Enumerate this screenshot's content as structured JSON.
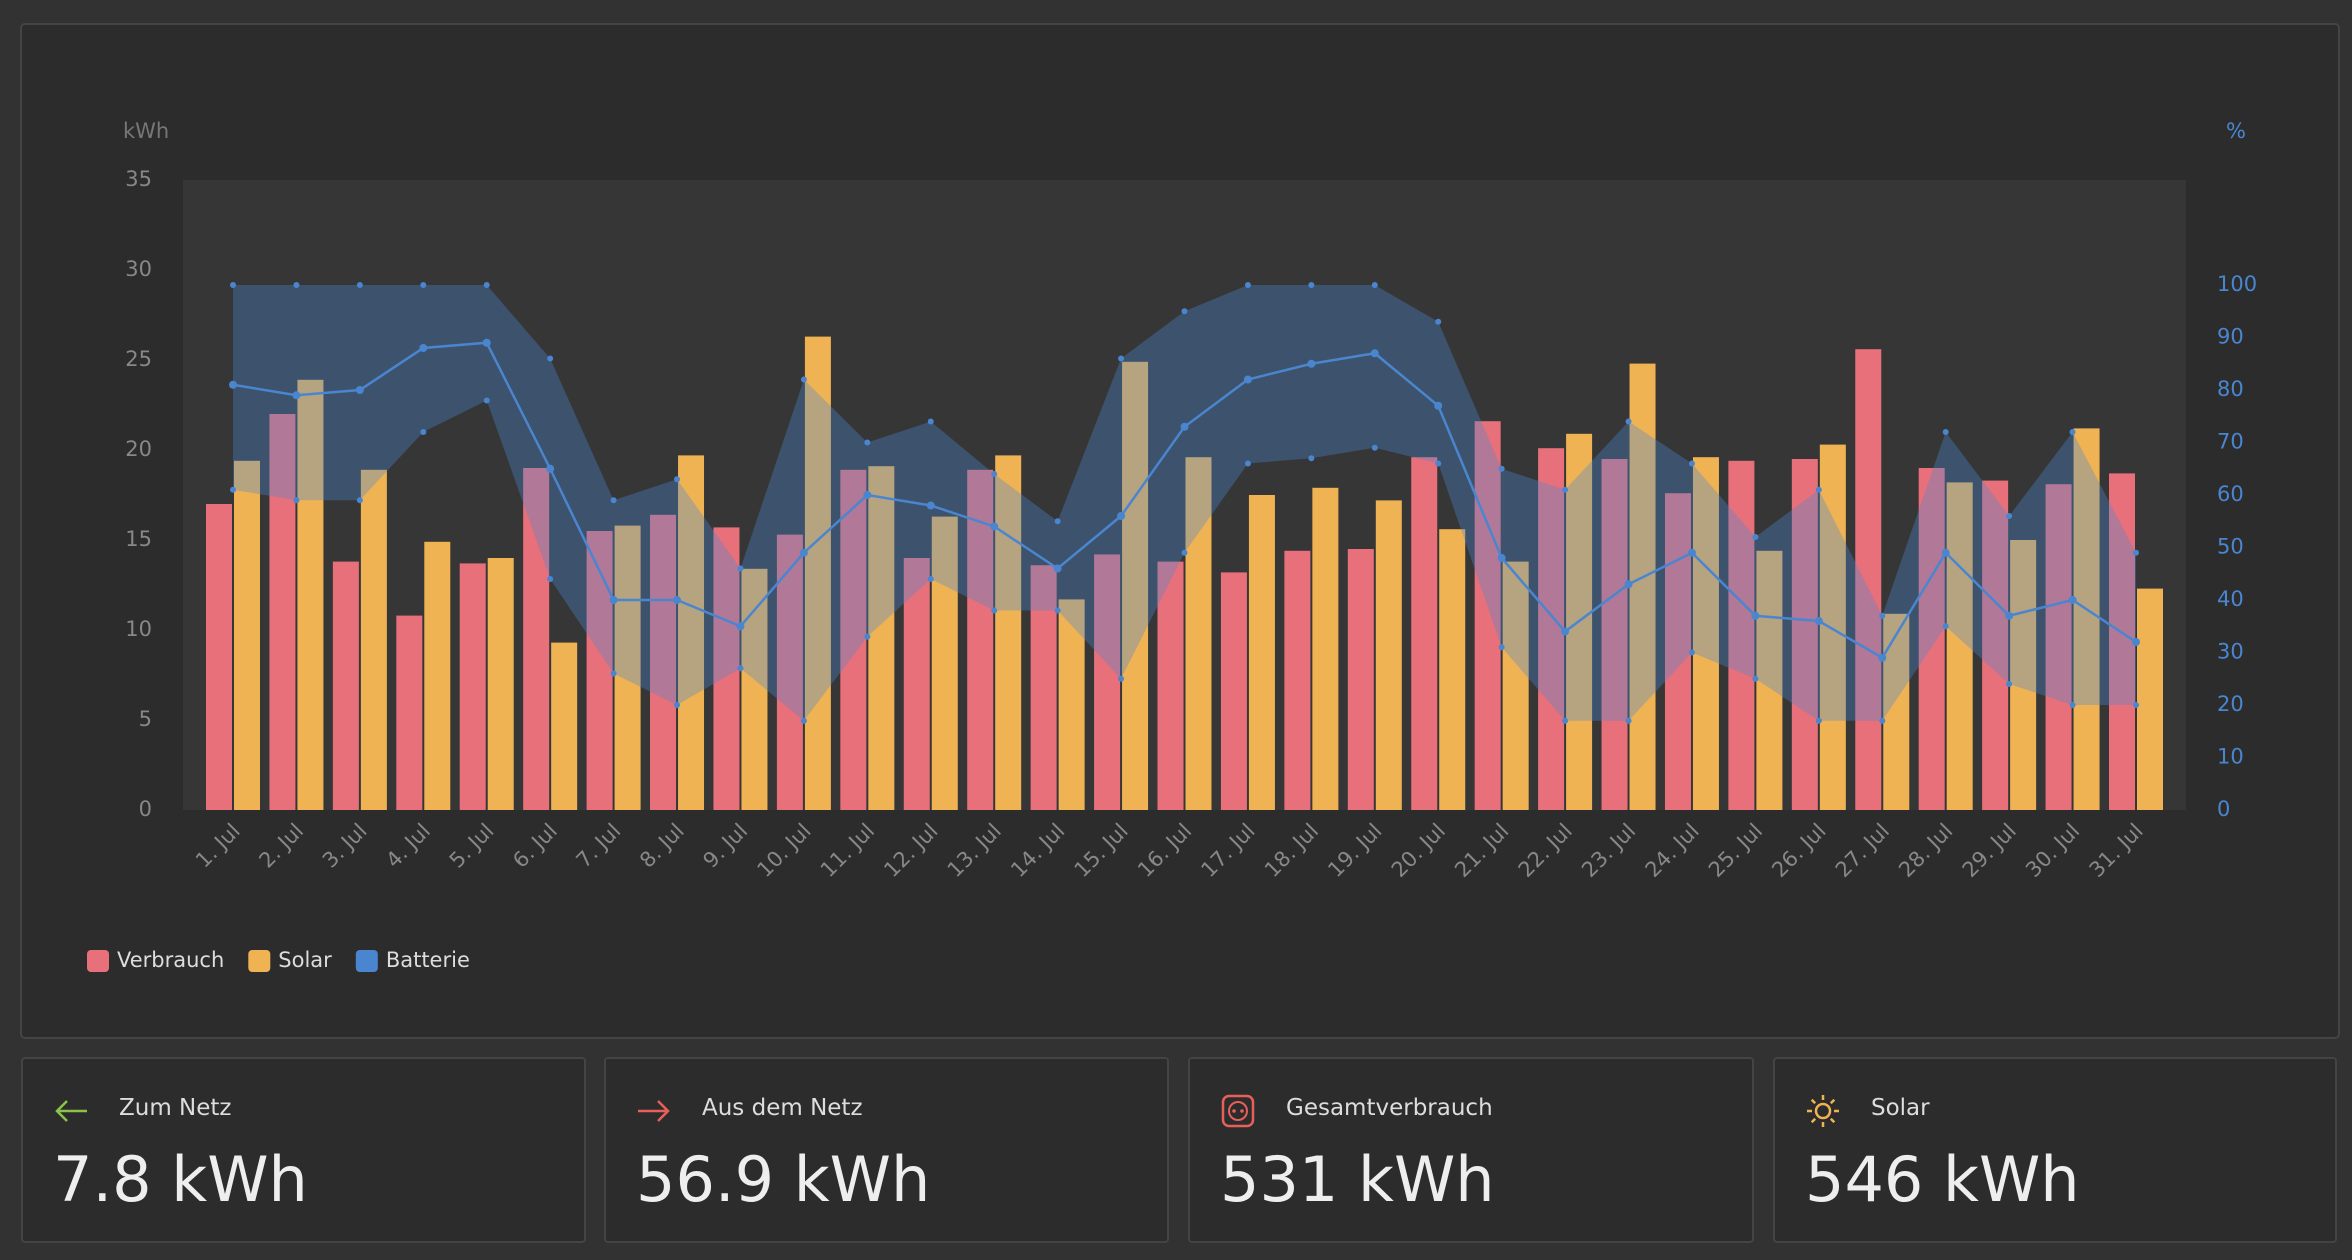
{
  "chart_data": {
    "type": "bar",
    "y_label": "kWh",
    "y2_label": "%",
    "categories": [
      "1. Jul",
      "2. Jul",
      "3. Jul",
      "4. Jul",
      "5. Jul",
      "6. Jul",
      "7. Jul",
      "8. Jul",
      "9. Jul",
      "10. Jul",
      "11. Jul",
      "12. Jul",
      "13. Jul",
      "14. Jul",
      "15. Jul",
      "16. Jul",
      "17. Jul",
      "18. Jul",
      "19. Jul",
      "20. Jul",
      "21. Jul",
      "22. Jul",
      "23. Jul",
      "24. Jul",
      "25. Jul",
      "26. Jul",
      "27. Jul",
      "28. Jul",
      "29. Jul",
      "30. Jul",
      "31. Jul"
    ],
    "series": [
      {
        "name": "Verbrauch",
        "color": "#e8707a",
        "values": [
          17.0,
          22.0,
          13.8,
          10.8,
          13.7,
          19.0,
          15.5,
          16.4,
          15.7,
          15.3,
          18.9,
          14.0,
          18.9,
          13.6,
          14.2,
          13.8,
          13.2,
          14.4,
          14.5,
          19.6,
          21.6,
          20.1,
          19.5,
          17.6,
          19.4,
          19.5,
          25.6,
          19.0,
          18.3,
          18.1,
          18.7
        ]
      },
      {
        "name": "Solar",
        "color": "#f0b354",
        "values": [
          19.4,
          23.9,
          18.9,
          14.9,
          14.0,
          9.3,
          15.8,
          19.7,
          13.4,
          26.3,
          19.1,
          16.3,
          19.7,
          11.7,
          24.9,
          19.6,
          17.5,
          17.9,
          17.2,
          15.6,
          13.8,
          20.9,
          24.8,
          19.6,
          14.4,
          20.3,
          10.9,
          18.2,
          15.0,
          21.2,
          12.3
        ]
      },
      {
        "name": "Batterie",
        "color": "#4a86d0",
        "type": "line",
        "axis": "y2",
        "values": [
          81,
          79,
          80,
          88,
          89,
          65,
          40,
          40,
          35,
          49,
          60,
          58,
          54,
          46,
          56,
          73,
          82,
          85,
          87,
          77,
          48,
          34,
          43,
          49,
          37,
          36,
          29,
          49,
          37,
          40,
          32
        ],
        "max": [
          100,
          100,
          100,
          100,
          100,
          86,
          59,
          63,
          46,
          82,
          70,
          74,
          64,
          55,
          86,
          95,
          100,
          100,
          100,
          93,
          65,
          61,
          74,
          66,
          52,
          61,
          37,
          72,
          56,
          72,
          49
        ],
        "min": [
          61,
          59,
          59,
          72,
          78,
          44,
          26,
          20,
          27,
          17,
          33,
          44,
          38,
          38,
          25,
          49,
          66,
          67,
          69,
          66,
          31,
          17,
          17,
          30,
          25,
          17,
          17,
          35,
          24,
          20,
          20
        ]
      }
    ],
    "ylim": [
      0,
      35
    ],
    "yticks": [
      0,
      5,
      10,
      15,
      20,
      25,
      30,
      35
    ],
    "y2lim": [
      0,
      120
    ],
    "y2ticks": [
      0,
      10,
      20,
      30,
      40,
      50,
      60,
      70,
      80,
      90,
      100
    ],
    "grid": false,
    "legend": "bottom-left"
  },
  "cards": [
    {
      "label": "Zum Netz",
      "value": "7.8 kWh"
    },
    {
      "label": "Aus dem Netz",
      "value": "56.9 kWh"
    },
    {
      "label": "Gesamtverbrauch",
      "value": "531 kWh"
    },
    {
      "label": "Solar",
      "value": "546 kWh"
    }
  ]
}
